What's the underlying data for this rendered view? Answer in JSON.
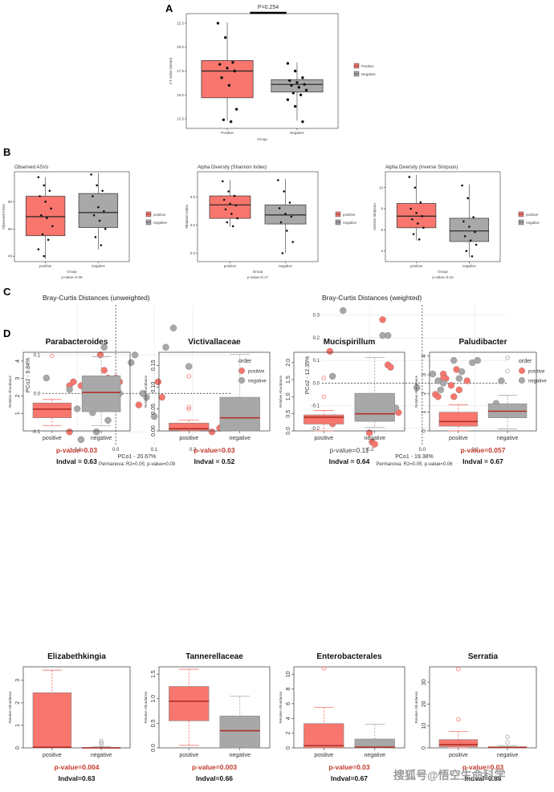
{
  "panel_labels": [
    "A",
    "B",
    "C",
    "D"
  ],
  "colors": {
    "positive": "#f8766d",
    "negative": "#a8a8a8",
    "sig": "#c0392b"
  },
  "watermark": "搜狐号@悟空生命科学",
  "chart_data": [
    {
      "id": "A",
      "type": "box",
      "title": "",
      "xlabel": "Group",
      "ylabel": "CT value (mean)",
      "categories": [
        "Positive",
        "Negative"
      ],
      "yticks": [
        "12.5",
        "15.0",
        "17.5",
        "20.0",
        "22.5"
      ],
      "ylim": [
        11.5,
        23.5
      ],
      "annotation": "P=0.254",
      "legend": [
        "Positive",
        "Negative"
      ],
      "boxes": [
        {
          "q1": 14.7,
          "median": 17.5,
          "q3": 18.6,
          "whisker_low": 12.3,
          "whisker_high": 22.6
        },
        {
          "q1": 15.3,
          "median": 16.1,
          "q3": 16.6,
          "whisker_low": 12.3,
          "whisker_high": 18.4
        }
      ],
      "points": [
        [
          22.5,
          21.0,
          18.4,
          18.2,
          17.8,
          17.5,
          16.8,
          16.0,
          13.5,
          12.4,
          12.2
        ],
        [
          18.3,
          17.5,
          16.8,
          16.5,
          16.3,
          16.1,
          16.0,
          15.8,
          15.5,
          15.2,
          15.0,
          14.5,
          13.8,
          12.2
        ]
      ]
    },
    {
      "id": "B1",
      "type": "box",
      "title": "Observed ASVs",
      "xlabel": "Group",
      "ylabel": "Observed ASVs",
      "categories": [
        "positive",
        "negative"
      ],
      "yticks": [
        "40",
        "60",
        "80"
      ],
      "ylim": [
        36,
        102
      ],
      "legend": [
        "positive",
        "negative"
      ],
      "pvalue": "p-value=0.36",
      "boxes": [
        {
          "q1": 55,
          "median": 69,
          "q3": 84,
          "whisker_low": 38,
          "whisker_high": 98
        },
        {
          "q1": 61,
          "median": 72,
          "q3": 86,
          "whisker_low": 45,
          "whisker_high": 101
        }
      ],
      "points": [
        [
          98,
          92,
          88,
          84,
          80,
          75,
          70,
          68,
          62,
          56,
          52,
          45,
          40
        ],
        [
          100,
          92,
          88,
          84,
          76,
          73,
          70,
          66,
          60,
          54,
          48
        ]
      ]
    },
    {
      "id": "B2",
      "type": "box",
      "title": "Alpha Diversity (Shannon Index)",
      "xlabel": "Group",
      "ylabel": "Shannon Index",
      "categories": [
        "positive",
        "negative"
      ],
      "yticks": [
        "2.5",
        "3.0",
        "3.5"
      ],
      "ylim": [
        2.35,
        3.95
      ],
      "legend": [
        "positive",
        "negative"
      ],
      "pvalue": "p-value=0.17",
      "boxes": [
        {
          "q1": 3.12,
          "median": 3.36,
          "q3": 3.52,
          "whisker_low": 2.97,
          "whisker_high": 3.8
        },
        {
          "q1": 3.02,
          "median": 3.18,
          "q3": 3.36,
          "whisker_low": 2.5,
          "whisker_high": 3.82
        }
      ],
      "points": [
        [
          3.78,
          3.6,
          3.52,
          3.45,
          3.38,
          3.35,
          3.28,
          3.2,
          3.12,
          3.05,
          2.98
        ],
        [
          3.8,
          3.6,
          3.4,
          3.3,
          3.2,
          3.15,
          3.05,
          2.9,
          2.7,
          2.5
        ]
      ]
    },
    {
      "id": "B3",
      "type": "box",
      "title": "Alpha Diversity (Inverse Simpson)",
      "xlabel": "Group",
      "ylabel": "Inverse Simpson",
      "categories": [
        "positive",
        "negative"
      ],
      "yticks": [
        "4",
        "6",
        "8",
        "10"
      ],
      "ylim": [
        3,
        11.5
      ],
      "legend": [
        "positive",
        "negative"
      ],
      "pvalue": "p-value=0.16",
      "boxes": [
        {
          "q1": 6.2,
          "median": 7.3,
          "q3": 8.5,
          "whisker_low": 5.0,
          "whisker_high": 11.2
        },
        {
          "q1": 4.9,
          "median": 5.9,
          "q3": 7.1,
          "whisker_low": 3.4,
          "whisker_high": 10.3
        }
      ],
      "points": [
        [
          11.0,
          10.0,
          8.6,
          8.0,
          7.6,
          7.3,
          7.0,
          6.6,
          6.2,
          5.6,
          5.1
        ],
        [
          10.2,
          9.0,
          7.2,
          6.8,
          6.3,
          5.8,
          5.4,
          5.0,
          4.6,
          4.0,
          3.5
        ]
      ]
    },
    {
      "id": "C1",
      "type": "scatter",
      "title": "Bray-Curtis Distances (unweighted)",
      "xlabel": "PCo1 - 20.67%",
      "ylabel": "PCo2 - 9.84%",
      "xlim": [
        -0.19,
        0.3
      ],
      "ylim": [
        -0.135,
        0.23
      ],
      "xticks": [
        -0.1,
        0.0,
        0.1,
        0.2
      ],
      "xtick_labels": [
        "-0.1",
        "0.0",
        "0.1",
        "0.2"
      ],
      "yticks": [
        -0.1,
        0.0,
        0.1
      ],
      "ytick_labels": [
        "-0.1",
        "0.0",
        "0.1"
      ],
      "legend_title": "order",
      "legend": [
        "positive",
        "negative"
      ],
      "footnote": "Permanova: R2=0.05; p-value=0.09",
      "series": [
        {
          "name": "positive",
          "points": [
            [
              -0.12,
              0.02
            ],
            [
              -0.11,
              0.03
            ],
            [
              -0.09,
              0.02
            ],
            [
              -0.08,
              0.01
            ],
            [
              -0.07,
              0.03
            ],
            [
              -0.06,
              0.01
            ],
            [
              -0.05,
              0.0
            ],
            [
              -0.04,
              0.1
            ],
            [
              -0.03,
              0.06
            ],
            [
              -0.02,
              0.04
            ],
            [
              0.0,
              0.04
            ],
            [
              0.01,
              0.03
            ],
            [
              -0.04,
              0.01
            ],
            [
              0.06,
              -0.03
            ],
            [
              0.11,
              0.03
            ],
            [
              0.12,
              -0.01
            ],
            [
              0.25,
              -0.1
            ],
            [
              0.27,
              -0.09
            ],
            [
              -0.12,
              -0.1
            ],
            [
              0.0,
              -0.04
            ]
          ]
        },
        {
          "name": "negative",
          "points": [
            [
              -0.18,
              0.04
            ],
            [
              -0.12,
              0.01
            ],
            [
              -0.1,
              -0.04
            ],
            [
              -0.09,
              -0.12
            ],
            [
              -0.06,
              -0.05
            ],
            [
              -0.05,
              -0.1
            ],
            [
              -0.03,
              0.12
            ],
            [
              0.0,
              -0.01
            ],
            [
              0.01,
              0.0
            ],
            [
              0.04,
              0.08
            ],
            [
              0.05,
              0.1
            ],
            [
              0.08,
              -0.01
            ],
            [
              0.1,
              -0.06
            ],
            [
              0.13,
              0.12
            ],
            [
              0.15,
              0.17
            ],
            [
              0.19,
              0.07
            ],
            [
              -0.02,
              -0.07
            ],
            [
              0.0,
              0.0
            ],
            [
              0.07,
              0.0
            ]
          ]
        }
      ]
    },
    {
      "id": "C2",
      "type": "scatter",
      "title": "Bray-Curtis Distances (weighted)",
      "xlabel": "PCo1 - 19.38%",
      "ylabel": "PCo2 - 12.35%",
      "xlim": [
        -0.38,
        0.32
      ],
      "ylim": [
        -0.275,
        0.345
      ],
      "xticks": [
        -0.2,
        0.0,
        0.2
      ],
      "xtick_labels": [
        "-0.2",
        "0.0",
        "0.2"
      ],
      "yticks": [
        -0.2,
        -0.1,
        0.0,
        0.1,
        0.2,
        0.3
      ],
      "ytick_labels": [
        "-0.2",
        "-0.1",
        "0.0",
        "0.1",
        "0.2",
        "0.3"
      ],
      "legend_title": "order",
      "legend": [
        "positive",
        "negative"
      ],
      "footnote": "Permanova: R2=0.05; p-value=0.06",
      "series": [
        {
          "name": "positive",
          "points": [
            [
              -0.35,
              0.14
            ],
            [
              -0.34,
              -0.18
            ],
            [
              -0.2,
              -0.22
            ],
            [
              -0.19,
              -0.26
            ],
            [
              -0.18,
              -0.27
            ],
            [
              -0.15,
              0.28
            ],
            [
              -0.13,
              0.08
            ],
            [
              -0.12,
              0.07
            ],
            [
              -0.09,
              -0.13
            ],
            [
              0.05,
              -0.05
            ],
            [
              0.06,
              -0.06
            ],
            [
              0.08,
              0.04
            ],
            [
              0.09,
              0.02
            ],
            [
              0.12,
              -0.06
            ],
            [
              0.13,
              0.06
            ],
            [
              0.14,
              -0.03
            ],
            [
              0.17,
              0.01
            ],
            [
              0.08,
              0.02
            ],
            [
              0.11,
              -0.01
            ]
          ]
        },
        {
          "name": "negative",
          "points": [
            [
              -0.34,
              0.03
            ],
            [
              -0.3,
              0.32
            ],
            [
              -0.15,
              0.21
            ],
            [
              -0.13,
              0.21
            ],
            [
              -0.1,
              -0.11
            ],
            [
              -0.02,
              -0.02
            ],
            [
              0.04,
              0.04
            ],
            [
              0.06,
              0.01
            ],
            [
              0.08,
              0.0
            ],
            [
              0.12,
              0.1
            ],
            [
              0.15,
              0.05
            ],
            [
              0.19,
              0.09
            ],
            [
              0.21,
              0.1
            ],
            [
              0.28,
              -0.09
            ],
            [
              0.3,
              0.01
            ],
            [
              0.07,
              -0.03
            ],
            [
              0.14,
              0.02
            ]
          ]
        }
      ]
    },
    {
      "id": "D1",
      "type": "box",
      "title": "Parabacteroides",
      "ylabel": "Relative Abundance",
      "categories": [
        "positive",
        "negative"
      ],
      "ylim": [
        0,
        4.5
      ],
      "yticks": [
        1,
        2,
        3,
        4
      ],
      "ytick_labels": [
        "1",
        "2",
        "3",
        "4"
      ],
      "pvalue": "p-value=0.03",
      "indval": "Indval = 0.63",
      "significant": true,
      "boxes": [
        {
          "q1": 0.75,
          "median": 1.25,
          "q3": 1.6,
          "whisker_low": 0.3,
          "whisker_high": 1.8,
          "outliers": [
            4.3
          ]
        },
        {
          "q1": 1.1,
          "median": 2.2,
          "q3": 3.15,
          "whisker_low": 0.3,
          "whisker_high": 4.25,
          "outliers": []
        }
      ]
    },
    {
      "id": "D2",
      "type": "box",
      "title": "Victivallaceae",
      "ylabel": "Relative Abundance",
      "categories": [
        "positive",
        "negative"
      ],
      "ylim": [
        0,
        0.18
      ],
      "yticks": [
        0.0,
        0.05,
        0.1,
        0.15
      ],
      "ytick_labels": [
        "0.00",
        "0.05",
        "0.10",
        "0.15"
      ],
      "pvalue": "p-value=0.03",
      "indval": "Indval = 0.52",
      "significant": true,
      "boxes": [
        {
          "q1": 0.001,
          "median": 0.005,
          "q3": 0.018,
          "whisker_low": 0.0,
          "whisker_high": 0.025,
          "outliers": [
            0.125,
            0.055,
            0.05
          ]
        },
        {
          "q1": 0.0,
          "median": 0.03,
          "q3": 0.077,
          "whisker_low": 0.0,
          "whisker_high": 0.175,
          "outliers": []
        }
      ]
    },
    {
      "id": "D3",
      "type": "box",
      "title": "Mucispirillum",
      "ylabel": "Relative Abundance",
      "categories": [
        "positive",
        "negative"
      ],
      "ylim": [
        0,
        2.3
      ],
      "yticks": [
        0.0,
        0.5,
        1.0,
        1.5,
        2.0
      ],
      "ytick_labels": [
        "0.0",
        "0.5",
        "1.0",
        "1.5",
        "2.0"
      ],
      "pvalue": "p-value=0.11",
      "indval": "Indval = 0.64",
      "significant": false,
      "boxes": [
        {
          "q1": 0.2,
          "median": 0.4,
          "q3": 0.47,
          "whisker_low": 0.0,
          "whisker_high": 0.6,
          "outliers": [
            1.55,
            1.0
          ]
        },
        {
          "q1": 0.28,
          "median": 0.5,
          "q3": 1.1,
          "whisker_low": 0.1,
          "whisker_high": 2.15,
          "outliers": []
        }
      ]
    },
    {
      "id": "D4",
      "type": "box",
      "title": "Paludibacter",
      "ylabel": "Relative Abundance",
      "categories": [
        "positive",
        "negative"
      ],
      "ylim": [
        0,
        4.2
      ],
      "yticks": [
        0,
        1,
        2,
        3,
        4
      ],
      "ytick_labels": [
        "0",
        "1",
        "2",
        "3",
        "4"
      ],
      "pvalue": "p-value=0.057",
      "indval": "Indval = 0.67",
      "significant": true,
      "boxes": [
        {
          "q1": 0.25,
          "median": 0.5,
          "q3": 1.0,
          "whisker_low": 0.0,
          "whisker_high": 1.4,
          "outliers": []
        },
        {
          "q1": 0.7,
          "median": 1.05,
          "q3": 1.45,
          "whisker_low": 0.1,
          "whisker_high": 1.9,
          "outliers": [
            3.9,
            3.2
          ]
        }
      ]
    },
    {
      "id": "D5",
      "type": "box",
      "title": "Elizabethkingia",
      "ylabel": "Relative Abundance",
      "categories": [
        "positive",
        "negative"
      ],
      "ylim": [
        0,
        3.6
      ],
      "yticks": [
        0,
        1,
        2,
        3
      ],
      "ytick_labels": [
        "0",
        "1",
        "2",
        "3"
      ],
      "pvalue": "p-value=0.004",
      "indval": "Indval=0.63",
      "significant": true,
      "boxes": [
        {
          "q1": 0.0,
          "median": 0.03,
          "q3": 2.45,
          "whisker_low": 0.0,
          "whisker_high": 3.45,
          "outliers": []
        },
        {
          "q1": 0.0,
          "median": 0.0,
          "q3": 0.02,
          "whisker_low": 0.0,
          "whisker_high": 0.05,
          "outliers": [
            0.3,
            0.22,
            0.15
          ]
        }
      ]
    },
    {
      "id": "D6",
      "type": "box",
      "title": "Tannerellaceae",
      "ylabel": "Relative Abundance",
      "categories": [
        "positive",
        "negative"
      ],
      "ylim": [
        0,
        1.65
      ],
      "yticks": [
        0.0,
        0.5,
        1.0,
        1.5
      ],
      "ytick_labels": [
        "0.0",
        "0.5",
        "1.0",
        "1.5"
      ],
      "pvalue": "p-value=0.003",
      "indval": "Indval=0.66",
      "significant": true,
      "boxes": [
        {
          "q1": 0.55,
          "median": 0.95,
          "q3": 1.25,
          "whisker_low": 0.05,
          "whisker_high": 1.6,
          "outliers": []
        },
        {
          "q1": 0.0,
          "median": 0.35,
          "q3": 0.65,
          "whisker_low": 0.0,
          "whisker_high": 1.05,
          "outliers": []
        }
      ]
    },
    {
      "id": "D7",
      "type": "box",
      "title": "Enterobacterales",
      "ylabel": "Relative Abundance",
      "categories": [
        "positive",
        "negative"
      ],
      "ylim": [
        0,
        11
      ],
      "yticks": [
        0,
        2,
        4,
        6,
        8,
        10
      ],
      "ytick_labels": [
        "0",
        "2",
        "4",
        "6",
        "8",
        "10"
      ],
      "pvalue": "p-value=0.03",
      "indval": "Indval=0.67",
      "significant": true,
      "boxes": [
        {
          "q1": 0.0,
          "median": 0.3,
          "q3": 3.3,
          "whisker_low": 0.0,
          "whisker_high": 5.5,
          "outliers": [
            10.8
          ]
        },
        {
          "q1": 0.0,
          "median": 0.1,
          "q3": 1.2,
          "whisker_low": 0.0,
          "whisker_high": 3.2,
          "outliers": []
        }
      ]
    },
    {
      "id": "D8",
      "type": "box",
      "title": "Serratia",
      "ylabel": "Relative Abundance",
      "categories": [
        "positive",
        "negative"
      ],
      "ylim": [
        0,
        37
      ],
      "yticks": [
        0,
        10,
        20,
        30
      ],
      "ytick_labels": [
        "0",
        "10",
        "20",
        "30"
      ],
      "pvalue": "p-value=0.03",
      "indval": "Indval=0.88",
      "significant": true,
      "boxes": [
        {
          "q1": 0.5,
          "median": 1.5,
          "q3": 3.8,
          "whisker_low": 0.0,
          "whisker_high": 7.5,
          "outliers": [
            36,
            13
          ]
        },
        {
          "q1": 0.0,
          "median": 0.2,
          "q3": 0.5,
          "whisker_low": 0.0,
          "whisker_high": 1.0,
          "outliers": [
            5,
            2.5
          ]
        }
      ]
    }
  ]
}
